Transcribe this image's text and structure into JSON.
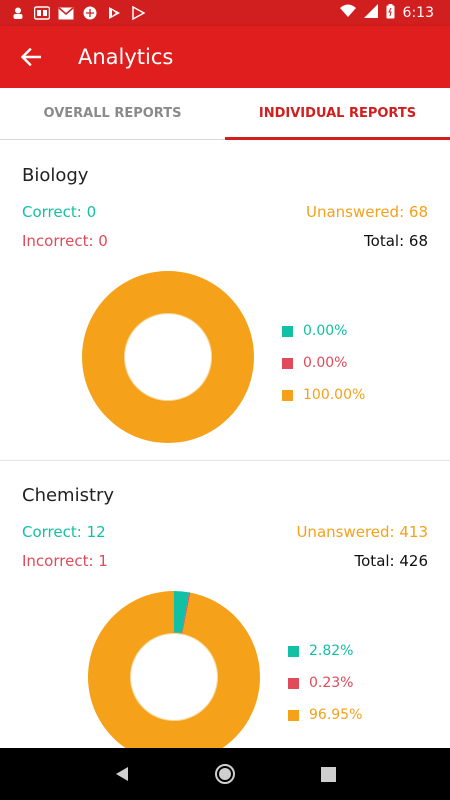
{
  "status_bar": {
    "time": "6:13",
    "icons": [
      "notification-person-icon",
      "bd-app-icon",
      "gmail-icon",
      "circle-app-icon",
      "play-store-icon",
      "play-store-outline-icon",
      "wifi-icon",
      "signal-icon",
      "battery-icon"
    ]
  },
  "app_bar": {
    "title": "Analytics",
    "back_icon": "arrow-back-icon"
  },
  "tabs": [
    {
      "label": "OVERALL REPORTS",
      "active": false
    },
    {
      "label": "INDIVIDUAL REPORTS",
      "active": true
    }
  ],
  "colors": {
    "correct": "#12c0a6",
    "incorrect": "#e04a5a",
    "unanswered": "#f5a11a",
    "brand": "#e01e1e"
  },
  "subjects": [
    {
      "name": "Biology",
      "correct": "Correct: 0",
      "incorrect": "Incorrect: 0",
      "unanswered": "Unanswered: 68",
      "total": "Total: 68",
      "chart_data": {
        "type": "pie",
        "categories": [
          "Correct",
          "Incorrect",
          "Unanswered"
        ],
        "values": [
          0.0,
          0.0,
          100.0
        ],
        "labels": [
          "0.00%",
          "0.00%",
          "100.00%"
        ]
      }
    },
    {
      "name": "Chemistry",
      "correct": "Correct: 12",
      "incorrect": "Incorrect: 1",
      "unanswered": "Unanswered: 413",
      "total": "Total: 426",
      "chart_data": {
        "type": "pie",
        "categories": [
          "Correct",
          "Incorrect",
          "Unanswered"
        ],
        "values": [
          2.82,
          0.23,
          96.95
        ],
        "labels": [
          "2.82%",
          "0.23%",
          "96.95%"
        ]
      }
    }
  ],
  "nav_bar": {
    "icons": [
      "back-triangle-icon",
      "home-circle-icon",
      "recents-square-icon"
    ]
  }
}
